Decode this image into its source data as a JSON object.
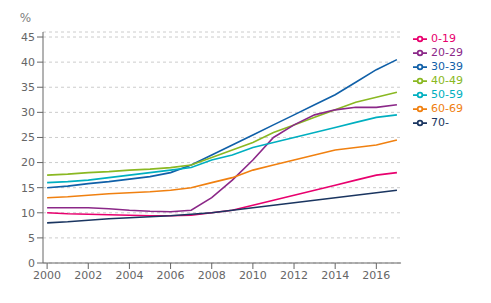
{
  "chart_data": {
    "type": "line",
    "ylabel": "%",
    "x": [
      2000,
      2001,
      2002,
      2003,
      2004,
      2005,
      2006,
      2007,
      2008,
      2009,
      2010,
      2011,
      2012,
      2013,
      2014,
      2015,
      2016,
      2017
    ],
    "series": [
      {
        "name": "30-39",
        "color": "#1060a8",
        "values": [
          15.0,
          15.3,
          15.8,
          16.2,
          16.7,
          17.2,
          18.0,
          19.5,
          21.5,
          23.5,
          25.5,
          27.5,
          29.5,
          31.5,
          33.5,
          36.0,
          38.5,
          40.5
        ]
      },
      {
        "name": "40-49",
        "color": "#8ab822",
        "values": [
          17.5,
          17.7,
          18.0,
          18.2,
          18.5,
          18.7,
          19.0,
          19.5,
          21.0,
          22.5,
          24.0,
          26.0,
          27.5,
          29.0,
          30.5,
          32.0,
          33.0,
          34.0
        ]
      },
      {
        "name": "20-29",
        "color": "#8b2888",
        "values": [
          11.0,
          11.0,
          11.0,
          10.8,
          10.5,
          10.3,
          10.2,
          10.5,
          13.0,
          16.5,
          20.5,
          25.0,
          27.5,
          29.5,
          30.5,
          31.0,
          31.0,
          31.5
        ]
      },
      {
        "name": "50-59",
        "color": "#00afc0",
        "values": [
          16.0,
          16.2,
          16.5,
          17.0,
          17.5,
          18.0,
          18.5,
          19.0,
          20.5,
          21.5,
          23.0,
          24.0,
          25.0,
          26.0,
          27.0,
          28.0,
          29.0,
          29.5
        ]
      },
      {
        "name": "60-69",
        "color": "#f08010",
        "values": [
          13.0,
          13.2,
          13.5,
          13.8,
          14.0,
          14.2,
          14.5,
          15.0,
          16.0,
          17.0,
          18.5,
          19.5,
          20.5,
          21.5,
          22.5,
          23.0,
          23.5,
          24.5
        ]
      },
      {
        "name": "0-19",
        "color": "#e8006e",
        "values": [
          10.0,
          9.8,
          9.7,
          9.6,
          9.5,
          9.4,
          9.4,
          9.5,
          10.0,
          10.5,
          11.5,
          12.5,
          13.5,
          14.5,
          15.5,
          16.5,
          17.5,
          18.0
        ]
      },
      {
        "name": "70-",
        "color": "#1a3560",
        "values": [
          8.0,
          8.2,
          8.5,
          8.8,
          9.0,
          9.2,
          9.4,
          9.7,
          10.0,
          10.5,
          11.0,
          11.5,
          12.0,
          12.5,
          13.0,
          13.5,
          14.0,
          14.5
        ]
      }
    ],
    "xlim": [
      1999.8,
      2017.2
    ],
    "xticks": [
      2000,
      2002,
      2004,
      2006,
      2008,
      2010,
      2012,
      2014,
      2016
    ],
    "ylim": [
      0,
      46
    ],
    "yticks": [
      0,
      5,
      10,
      15,
      20,
      25,
      30,
      35,
      40,
      45
    ],
    "grid": "y",
    "legend": "right"
  }
}
